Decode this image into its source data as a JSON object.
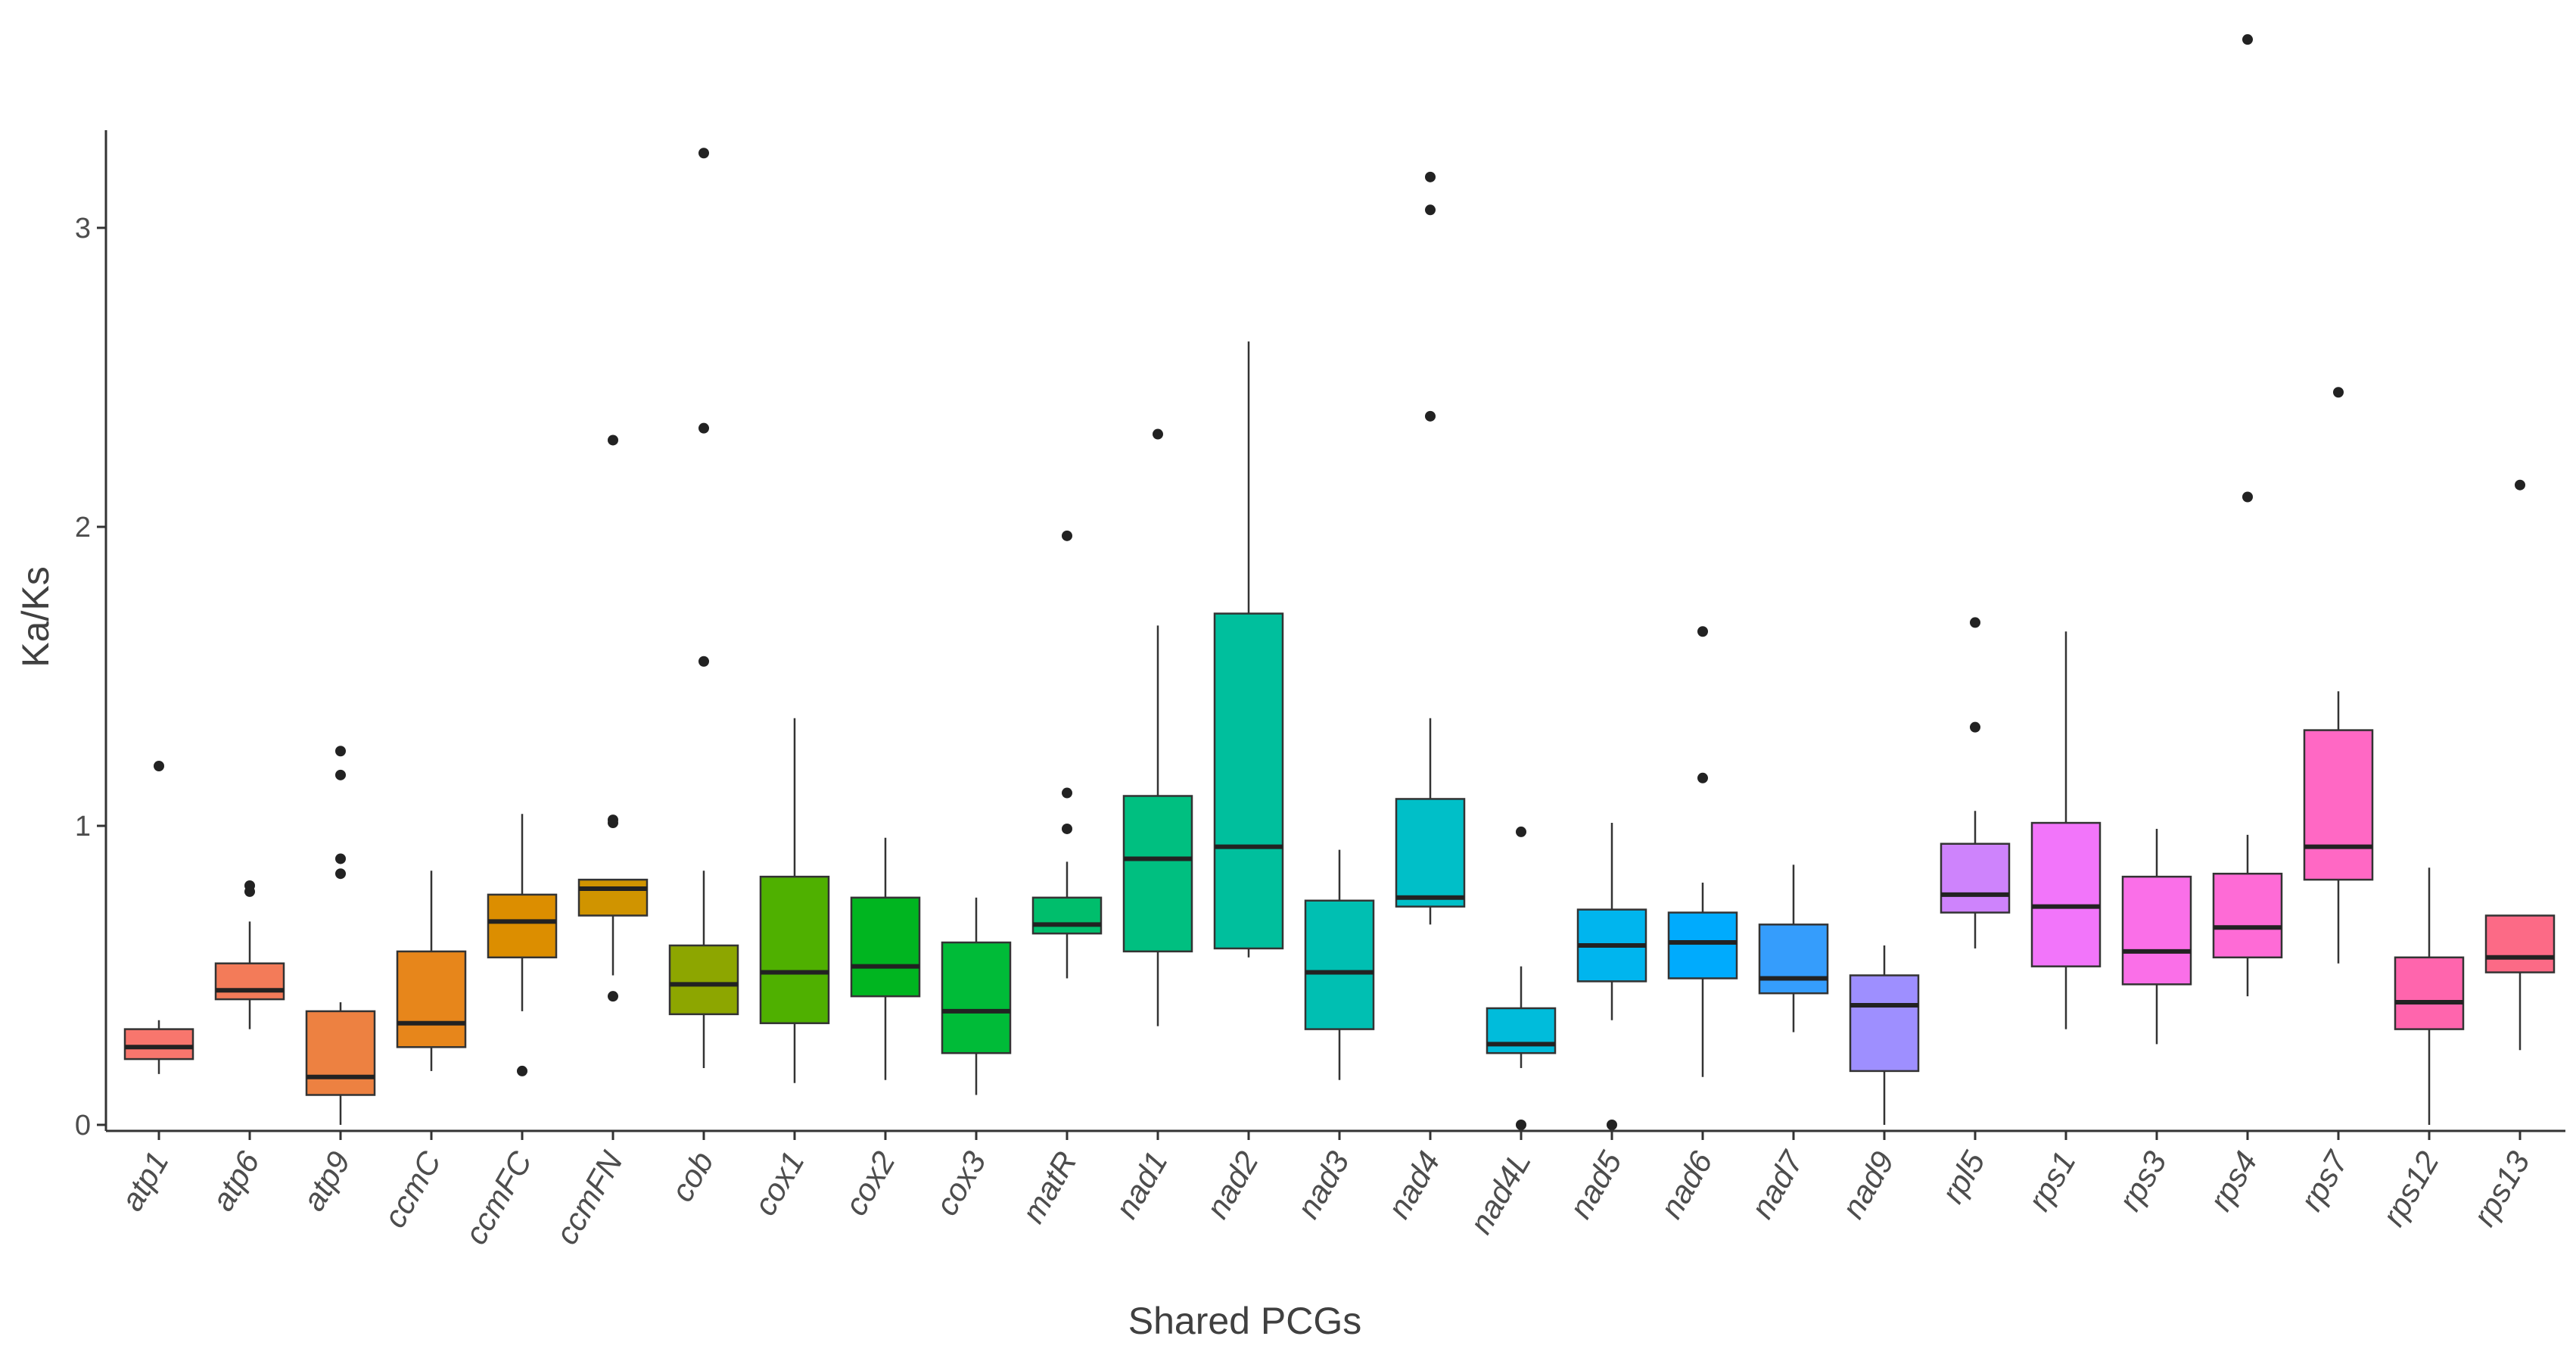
{
  "chart_data": {
    "type": "boxplot",
    "xlabel": "Shared PCGs",
    "ylabel": "Ka/Ks",
    "ylim": [
      -0.03,
      3.3
    ],
    "yticks": [
      0,
      1,
      2,
      3
    ],
    "ytick_labels": [
      "0",
      "1",
      "2",
      "3"
    ],
    "grid": false,
    "legend": "none",
    "series": [
      {
        "name": "atp1",
        "color": "#F8766D",
        "min": 0.17,
        "q1": 0.22,
        "median": 0.26,
        "q3": 0.32,
        "max": 0.35,
        "outliers": [
          1.2
        ]
      },
      {
        "name": "atp6",
        "color": "#F37B59",
        "min": 0.32,
        "q1": 0.42,
        "median": 0.45,
        "q3": 0.54,
        "max": 0.68,
        "outliers": [
          0.78,
          0.8
        ]
      },
      {
        "name": "atp9",
        "color": "#ED8141",
        "min": 0.0,
        "q1": 0.1,
        "median": 0.16,
        "q3": 0.38,
        "max": 0.41,
        "outliers": [
          0.84,
          0.89,
          1.17,
          1.25
        ]
      },
      {
        "name": "ccmC",
        "color": "#E7861B",
        "min": 0.18,
        "q1": 0.26,
        "median": 0.34,
        "q3": 0.58,
        "max": 0.85,
        "outliers": []
      },
      {
        "name": "ccmFC",
        "color": "#DC8E00",
        "min": 0.38,
        "q1": 0.56,
        "median": 0.68,
        "q3": 0.77,
        "max": 1.04,
        "outliers": [
          0.18
        ]
      },
      {
        "name": "ccmFN",
        "color": "#D09400",
        "min": 0.5,
        "q1": 0.7,
        "median": 0.79,
        "q3": 0.82,
        "max": 0.82,
        "outliers": [
          0.43,
          1.01,
          1.02,
          2.29
        ]
      },
      {
        "name": "cob",
        "color": "#8DA600",
        "min": 0.19,
        "q1": 0.37,
        "median": 0.47,
        "q3": 0.6,
        "max": 0.85,
        "outliers": [
          1.55,
          2.33,
          3.25
        ]
      },
      {
        "name": "cox1",
        "color": "#4FB000",
        "min": 0.14,
        "q1": 0.34,
        "median": 0.51,
        "q3": 0.83,
        "max": 1.36,
        "outliers": []
      },
      {
        "name": "cox2",
        "color": "#00B520",
        "min": 0.15,
        "q1": 0.43,
        "median": 0.53,
        "q3": 0.76,
        "max": 0.96,
        "outliers": []
      },
      {
        "name": "cox3",
        "color": "#00BB38",
        "min": 0.1,
        "q1": 0.24,
        "median": 0.38,
        "q3": 0.61,
        "max": 0.76,
        "outliers": []
      },
      {
        "name": "matR",
        "color": "#00BE6C",
        "min": 0.49,
        "q1": 0.64,
        "median": 0.67,
        "q3": 0.76,
        "max": 0.88,
        "outliers": [
          0.99,
          1.11,
          1.97
        ]
      },
      {
        "name": "nad1",
        "color": "#00BF80",
        "min": 0.33,
        "q1": 0.58,
        "median": 0.89,
        "q3": 1.1,
        "max": 1.67,
        "outliers": [
          2.31
        ]
      },
      {
        "name": "nad2",
        "color": "#00BF9D",
        "min": 0.56,
        "q1": 0.59,
        "median": 0.93,
        "q3": 1.71,
        "max": 2.62,
        "outliers": []
      },
      {
        "name": "nad3",
        "color": "#00BFB2",
        "min": 0.15,
        "q1": 0.32,
        "median": 0.51,
        "q3": 0.75,
        "max": 0.92,
        "outliers": []
      },
      {
        "name": "nad4",
        "color": "#00BFC8",
        "min": 0.67,
        "q1": 0.73,
        "median": 0.76,
        "q3": 1.09,
        "max": 1.36,
        "outliers": [
          2.37,
          3.06,
          3.17
        ]
      },
      {
        "name": "nad4L",
        "color": "#00BCDB",
        "min": 0.19,
        "q1": 0.24,
        "median": 0.27,
        "q3": 0.39,
        "max": 0.53,
        "outliers": [
          0.0,
          0.98
        ]
      },
      {
        "name": "nad5",
        "color": "#00B5EE",
        "min": 0.35,
        "q1": 0.48,
        "median": 0.6,
        "q3": 0.72,
        "max": 1.01,
        "outliers": [
          0.0
        ]
      },
      {
        "name": "nad6",
        "color": "#00ABFD",
        "min": 0.16,
        "q1": 0.49,
        "median": 0.61,
        "q3": 0.71,
        "max": 0.81,
        "outliers": [
          1.16,
          1.65
        ]
      },
      {
        "name": "nad7",
        "color": "#359DFC",
        "min": 0.31,
        "q1": 0.44,
        "median": 0.49,
        "q3": 0.67,
        "max": 0.87,
        "outliers": []
      },
      {
        "name": "nad9",
        "color": "#9E8FFF",
        "min": 0.0,
        "q1": 0.18,
        "median": 0.4,
        "q3": 0.5,
        "max": 0.6,
        "outliers": []
      },
      {
        "name": "rpl5",
        "color": "#CE83FC",
        "min": 0.59,
        "q1": 0.71,
        "median": 0.77,
        "q3": 0.94,
        "max": 1.05,
        "outliers": [
          1.33,
          1.68
        ]
      },
      {
        "name": "rps1",
        "color": "#F275FA",
        "min": 0.32,
        "q1": 0.53,
        "median": 0.73,
        "q3": 1.01,
        "max": 1.65,
        "outliers": []
      },
      {
        "name": "rps3",
        "color": "#FA6FE8",
        "min": 0.27,
        "q1": 0.47,
        "median": 0.58,
        "q3": 0.83,
        "max": 0.99,
        "outliers": []
      },
      {
        "name": "rps4",
        "color": "#FE6BD6",
        "min": 0.43,
        "q1": 0.56,
        "median": 0.66,
        "q3": 0.84,
        "max": 0.97,
        "outliers": [
          2.1,
          3.63
        ]
      },
      {
        "name": "rps7",
        "color": "#FF68C4",
        "min": 0.54,
        "q1": 0.82,
        "median": 0.93,
        "q3": 1.32,
        "max": 1.45,
        "outliers": [
          2.45
        ]
      },
      {
        "name": "rps12",
        "color": "#FF65AD",
        "min": 0.0,
        "q1": 0.32,
        "median": 0.41,
        "q3": 0.56,
        "max": 0.86,
        "outliers": []
      },
      {
        "name": "rps13",
        "color": "#FC6A86",
        "min": 0.25,
        "q1": 0.51,
        "median": 0.56,
        "q3": 0.7,
        "max": 0.7,
        "outliers": [
          2.14
        ]
      }
    ]
  }
}
